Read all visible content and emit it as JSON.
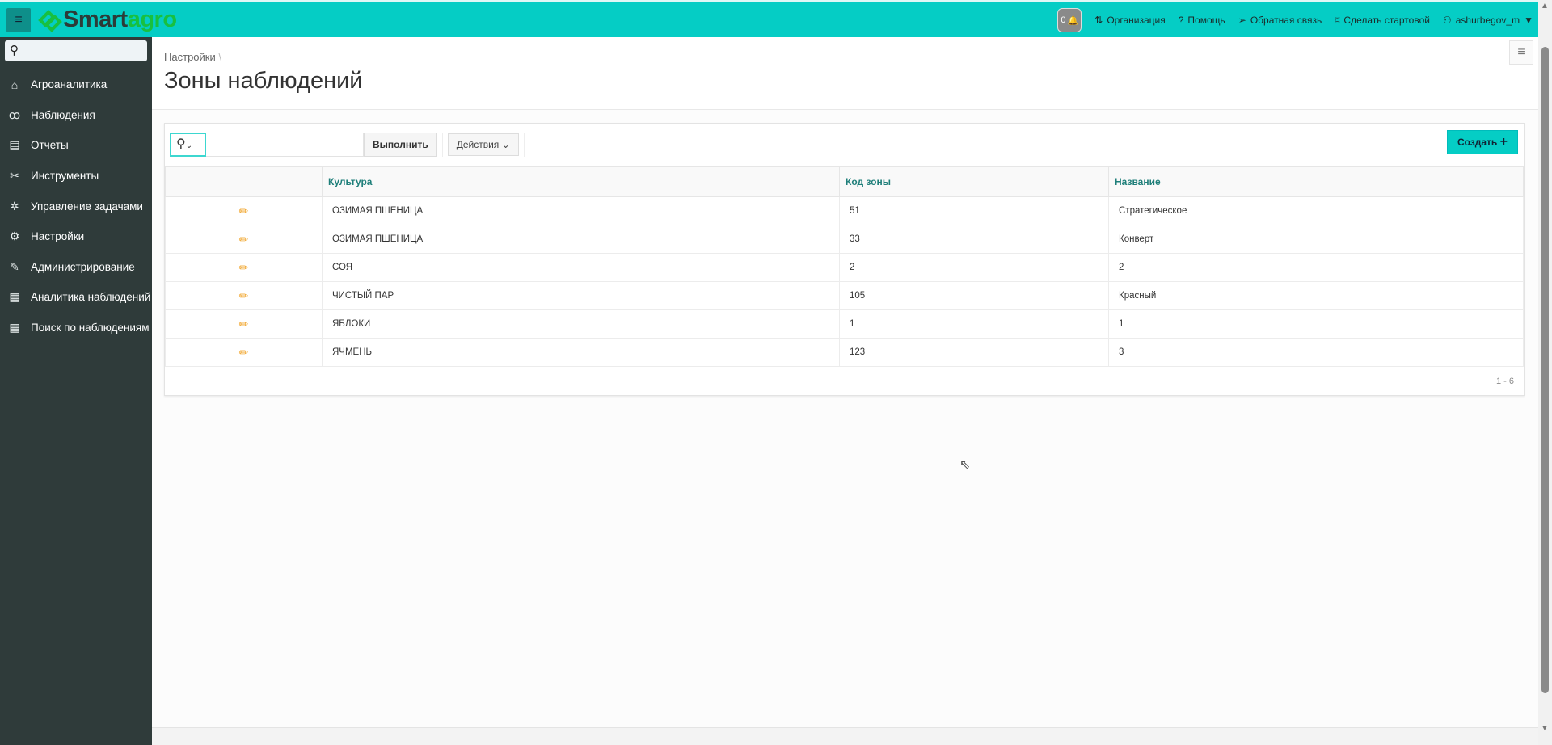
{
  "topbar": {
    "logo": "Smartagro",
    "logo_a": "Smart",
    "logo_b": "agro",
    "notifications": "0",
    "org": "Организация",
    "help": "Помощь",
    "feedback": "Обратная связь",
    "home": "Сделать стартовой",
    "user": "ashurbegov_m"
  },
  "sidebar": {
    "items": [
      {
        "label": "Агроаналитика",
        "icon": "home-icon"
      },
      {
        "label": "Наблюдения",
        "icon": "binoculars-icon"
      },
      {
        "label": "Отчеты",
        "icon": "clipboard-icon"
      },
      {
        "label": "Инструменты",
        "icon": "tools-icon"
      },
      {
        "label": "Управление задачами",
        "icon": "bug-icon"
      },
      {
        "label": "Настройки",
        "icon": "gear-icon"
      },
      {
        "label": "Администрирование",
        "icon": "edit-window-icon"
      },
      {
        "label": "Аналитика наблюдений",
        "icon": "table-search-icon"
      },
      {
        "label": "Поиск по наблюдениям",
        "icon": "table-search-icon"
      }
    ]
  },
  "page": {
    "breadcrumb": "Настройки",
    "title": "Зоны наблюдений"
  },
  "toolbar": {
    "run": "Выполнить",
    "actions": "Действия",
    "create": "Создать"
  },
  "table": {
    "headers": [
      "Культура",
      "Код зоны",
      "Название"
    ],
    "rows": [
      [
        "ОЗИМАЯ ПШЕНИЦА",
        "51",
        "Стратегическое"
      ],
      [
        "ОЗИМАЯ ПШЕНИЦА",
        "33",
        "Конверт"
      ],
      [
        "СОЯ",
        "2",
        "2"
      ],
      [
        "ЧИСТЫЙ ПАР",
        "105",
        "Красный"
      ],
      [
        "ЯБЛОКИ",
        "1",
        "1"
      ],
      [
        "ЯЧМЕНЬ",
        "123",
        "3"
      ]
    ],
    "pagination": "1 - 6"
  },
  "colors": {
    "accent": "#05cdc5",
    "sidebar": "#2f3b3a",
    "header_text": "#1f7f7a"
  }
}
